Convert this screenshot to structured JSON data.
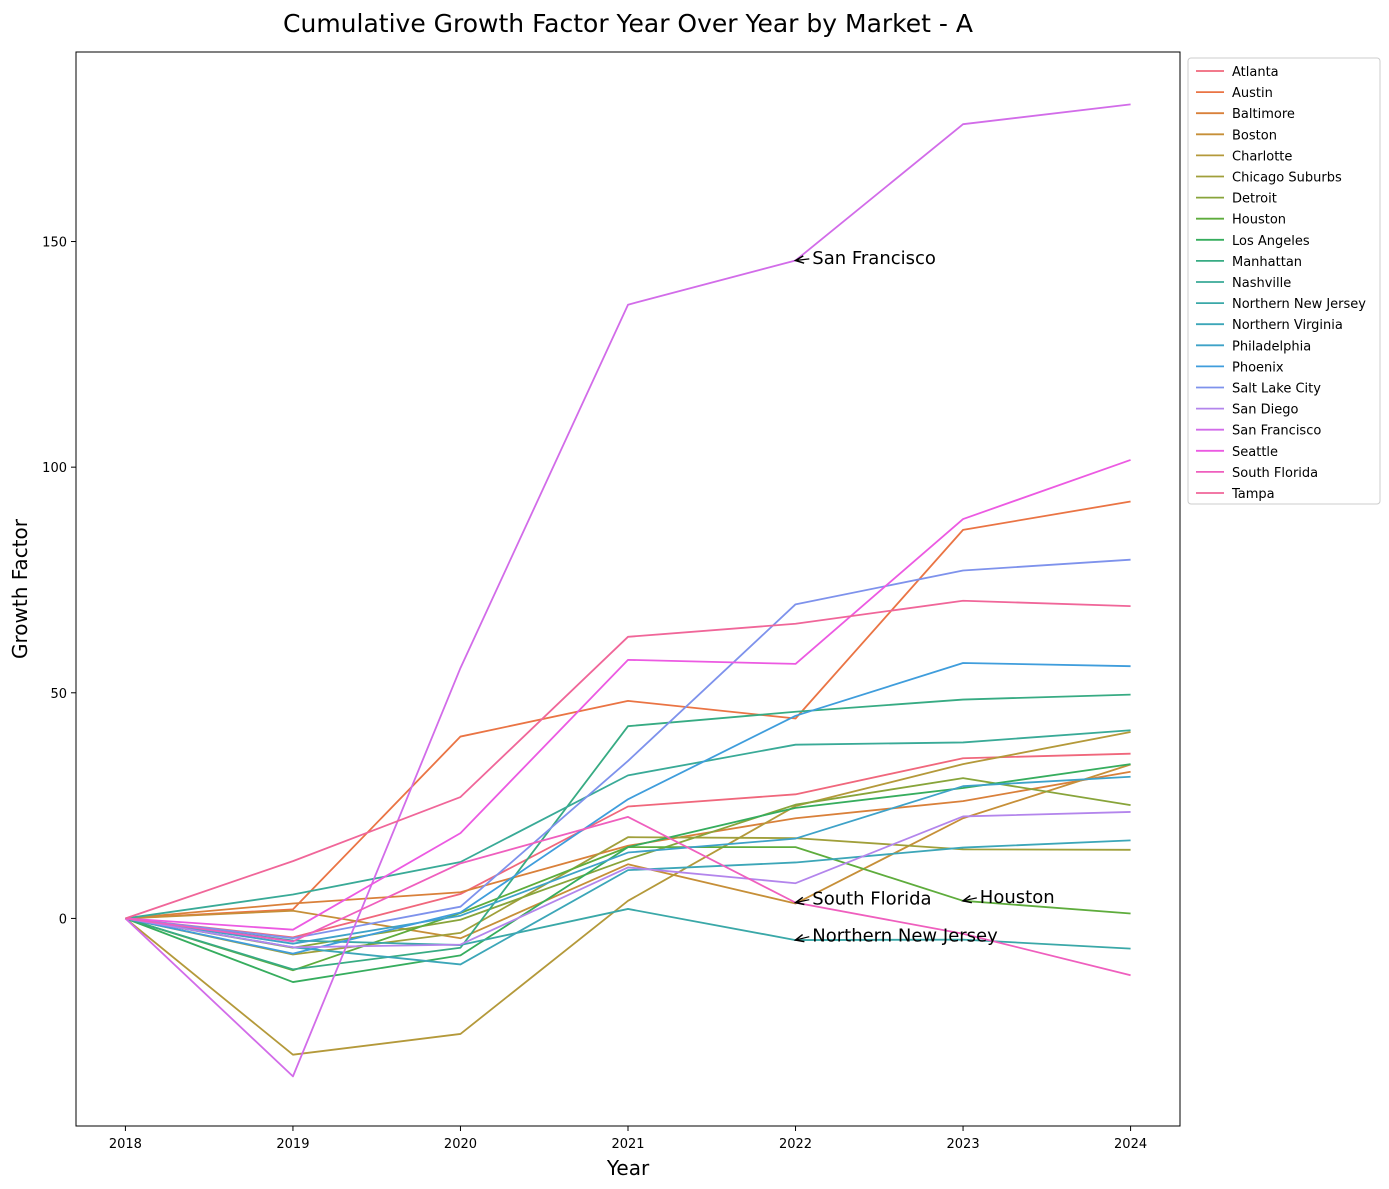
{
  "chart_data": {
    "type": "line",
    "title": "Cumulative Growth Factor Year Over Year by Market - A",
    "xlabel": "Year",
    "ylabel": "Growth Factor",
    "x": [
      2018,
      2019,
      2020,
      2021,
      2022,
      2023,
      2024
    ],
    "xticks": [
      "2018",
      "2019",
      "2020",
      "2021",
      "2022",
      "2023",
      "2024"
    ],
    "ylim": [
      -46,
      192
    ],
    "yticks": [
      0,
      50,
      100,
      150
    ],
    "ytick_labels": [
      "0",
      "50",
      "100",
      "150"
    ],
    "grid": false,
    "legend_position": "outside-right",
    "series": [
      {
        "name": "Atlanta",
        "color": "#f0677c",
        "values": [
          0,
          -4.2,
          5.4,
          24.8,
          27.5,
          35.5,
          36.5
        ]
      },
      {
        "name": "Austin",
        "color": "#ea7444",
        "values": [
          0,
          2,
          40.3,
          48.2,
          44.3,
          86.1,
          92.4
        ]
      },
      {
        "name": "Baltimore",
        "color": "#d9803a",
        "values": [
          0,
          3.3,
          5.8,
          16.1,
          22.2,
          26,
          32.5
        ]
      },
      {
        "name": "Boston",
        "color": "#c68f38",
        "values": [
          0,
          1.7,
          -4.4,
          12,
          3.3,
          22.2,
          34.1
        ]
      },
      {
        "name": "Charlotte",
        "color": "#b4993a",
        "values": [
          0,
          -30.2,
          -25.6,
          3.9,
          24.9,
          34.2,
          41.3
        ]
      },
      {
        "name": "Chicago Suburbs",
        "color": "#a09f3a",
        "values": [
          0,
          -8,
          -3.2,
          18,
          17.8,
          15.3,
          15.2
        ]
      },
      {
        "name": "Detroit",
        "color": "#88a43a",
        "values": [
          0,
          -6.5,
          -0.3,
          13.1,
          25.2,
          31.1,
          25.1
        ]
      },
      {
        "name": "Houston",
        "color": "#5eac3c",
        "values": [
          0,
          -11.5,
          1.2,
          15.8,
          15.8,
          3.9,
          1.1
        ]
      },
      {
        "name": "Los Angeles",
        "color": "#36ad5e",
        "values": [
          0,
          -14.1,
          -8.2,
          15.8,
          24.5,
          28.9,
          34.2
        ]
      },
      {
        "name": "Manhattan",
        "color": "#37ab83",
        "values": [
          0,
          -11.3,
          -6.5,
          42.6,
          45.8,
          48.5,
          49.6
        ]
      },
      {
        "name": "Nashville",
        "color": "#39aa97",
        "values": [
          0,
          5.3,
          12.5,
          31.7,
          38.5,
          39,
          41.7
        ]
      },
      {
        "name": "Northern New Jersey",
        "color": "#3aa8a8",
        "values": [
          0,
          -4.9,
          -5.9,
          2.1,
          -4.8,
          -4.7,
          -6.7
        ]
      },
      {
        "name": "Northern Virginia",
        "color": "#3ca6b8",
        "values": [
          0,
          -6.4,
          -10.2,
          10.7,
          12.4,
          15.7,
          17.3
        ]
      },
      {
        "name": "Philadelphia",
        "color": "#3ea2c8",
        "values": [
          0,
          -5.6,
          0.6,
          14.6,
          17.7,
          29.3,
          31.4
        ]
      },
      {
        "name": "Phoenix",
        "color": "#3f9ddc",
        "values": [
          0,
          -7.8,
          1.3,
          26.4,
          44.9,
          56.6,
          55.9
        ]
      },
      {
        "name": "Salt Lake City",
        "color": "#7e92ec",
        "values": [
          0,
          -4.4,
          2.6,
          34.9,
          69.6,
          77.1,
          79.5
        ]
      },
      {
        "name": "San Diego",
        "color": "#b385ec",
        "values": [
          0,
          -6.4,
          -5.8,
          11.3,
          7.8,
          22.6,
          23.6
        ]
      },
      {
        "name": "San Francisco",
        "color": "#d26ce9",
        "values": [
          0,
          -35,
          55.5,
          136,
          145.8,
          176,
          180.4
        ]
      },
      {
        "name": "Seattle",
        "color": "#ec5ae2",
        "values": [
          0,
          -2.5,
          18.9,
          57.3,
          56.4,
          88.5,
          101.6
        ]
      },
      {
        "name": "South Florida",
        "color": "#ef5fbe",
        "values": [
          0,
          -5.1,
          12.2,
          22.5,
          3.5,
          -3.4,
          -12.6
        ]
      },
      {
        "name": "Tampa",
        "color": "#f06699",
        "values": [
          0,
          12.7,
          26.9,
          62.4,
          65.3,
          70.4,
          69.2
        ]
      }
    ],
    "annotations": [
      {
        "text": "San Francisco",
        "x": 2022,
        "y": 145.8,
        "text_x": 2022.1,
        "text_y": 146.6
      },
      {
        "text": "South Florida",
        "x": 2022,
        "y": 3.5,
        "text_x": 2022.1,
        "text_y": 4.6
      },
      {
        "text": "Northern New Jersey",
        "x": 2022,
        "y": -4.8,
        "text_x": 2022.1,
        "text_y": -3.6
      },
      {
        "text": "Houston",
        "x": 2023,
        "y": 3.9,
        "text_x": 2023.1,
        "text_y": 5
      }
    ]
  }
}
